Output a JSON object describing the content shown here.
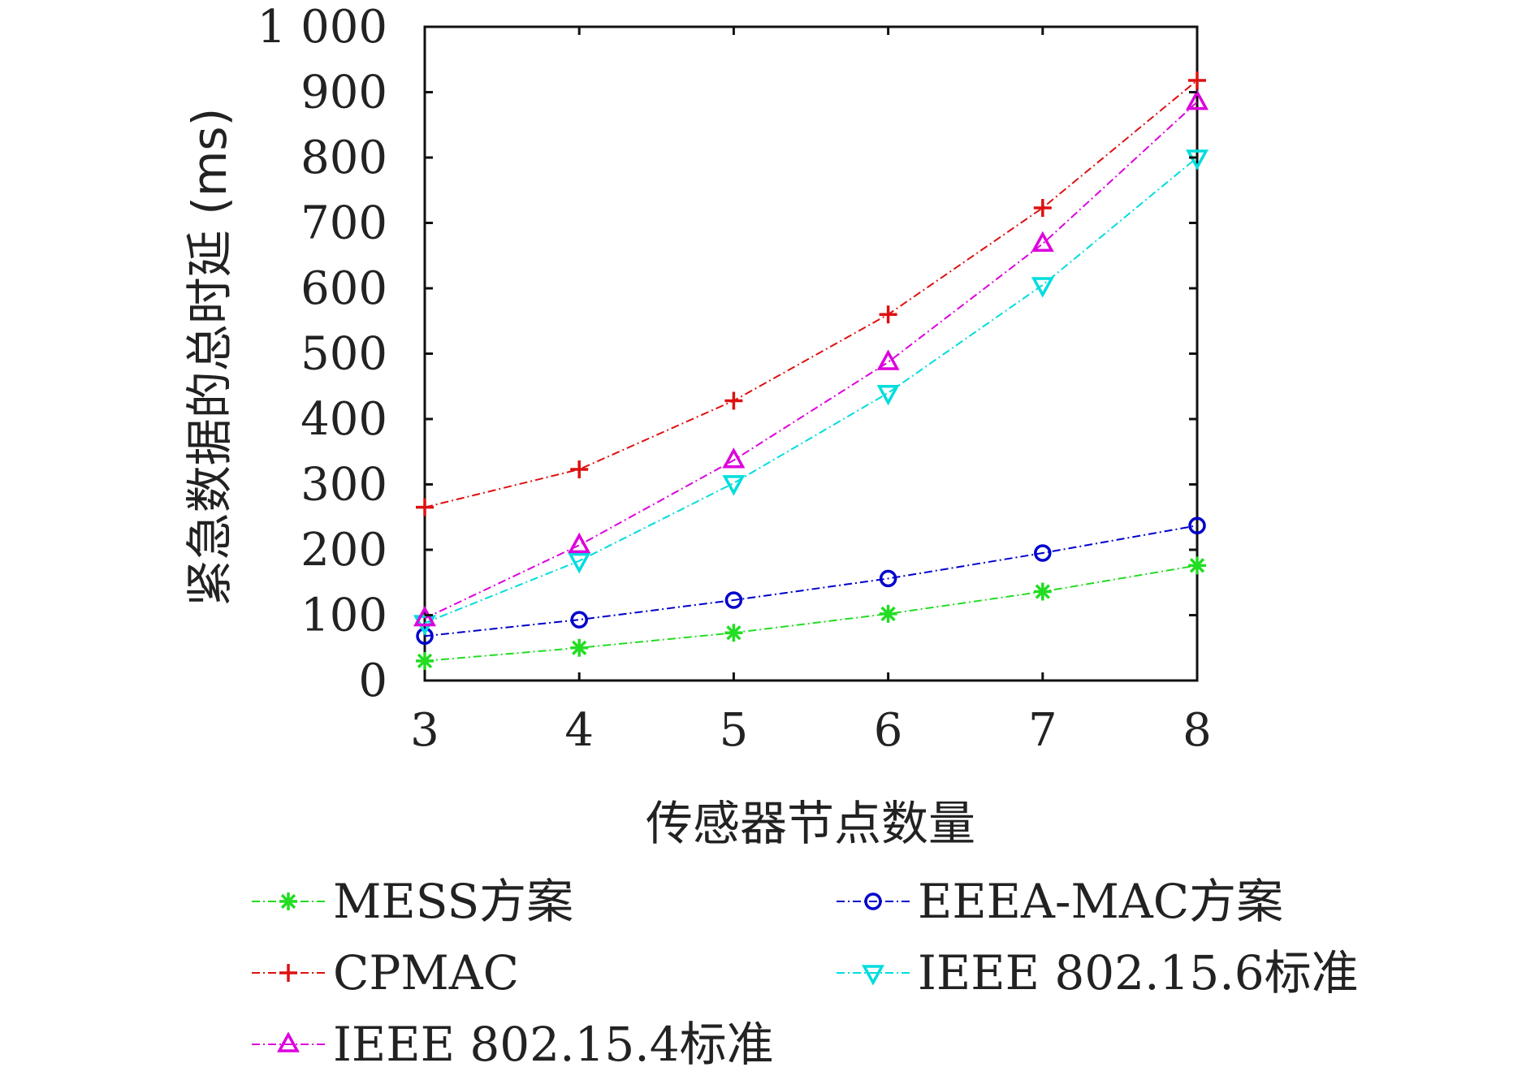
{
  "chart_data": {
    "type": "line",
    "title": "",
    "xlabel": "传感器节点数量",
    "ylabel": "紧急数据的总时延 (ms)",
    "x": [
      3,
      4,
      5,
      6,
      7,
      8
    ],
    "xlim": [
      3,
      8
    ],
    "ylim": [
      0,
      1000
    ],
    "xticks": [
      "3",
      "4",
      "5",
      "6",
      "7",
      "8"
    ],
    "yticks": [
      0,
      100,
      200,
      300,
      400,
      500,
      600,
      700,
      800,
      900,
      1000
    ],
    "ytick_labels": [
      "0",
      "100",
      "200",
      "300",
      "400",
      "500",
      "600",
      "700",
      "800",
      "900",
      "1 000"
    ],
    "grid": false,
    "legend_position": "bottom",
    "series": [
      {
        "name": "MESS方案",
        "color": "#22dd22",
        "marker": "asterisk",
        "values": [
          30,
          50,
          73,
          102,
          136,
          176
        ]
      },
      {
        "name": "EEEA-MAC方案",
        "color": "#0000cc",
        "marker": "circle",
        "values": [
          68,
          93,
          123,
          156,
          195,
          237
        ]
      },
      {
        "name": "CPMAC",
        "color": "#dd1111",
        "marker": "plus",
        "values": [
          265,
          323,
          428,
          560,
          723,
          918
        ]
      },
      {
        "name": "IEEE 802.15.6标准",
        "color": "#00dddd",
        "marker": "triangle-down",
        "values": [
          88,
          183,
          302,
          440,
          605,
          800
        ]
      },
      {
        "name": "IEEE 802.15.4标准",
        "color": "#dd00dd",
        "marker": "triangle-up",
        "values": [
          95,
          207,
          337,
          487,
          668,
          885
        ]
      }
    ]
  }
}
